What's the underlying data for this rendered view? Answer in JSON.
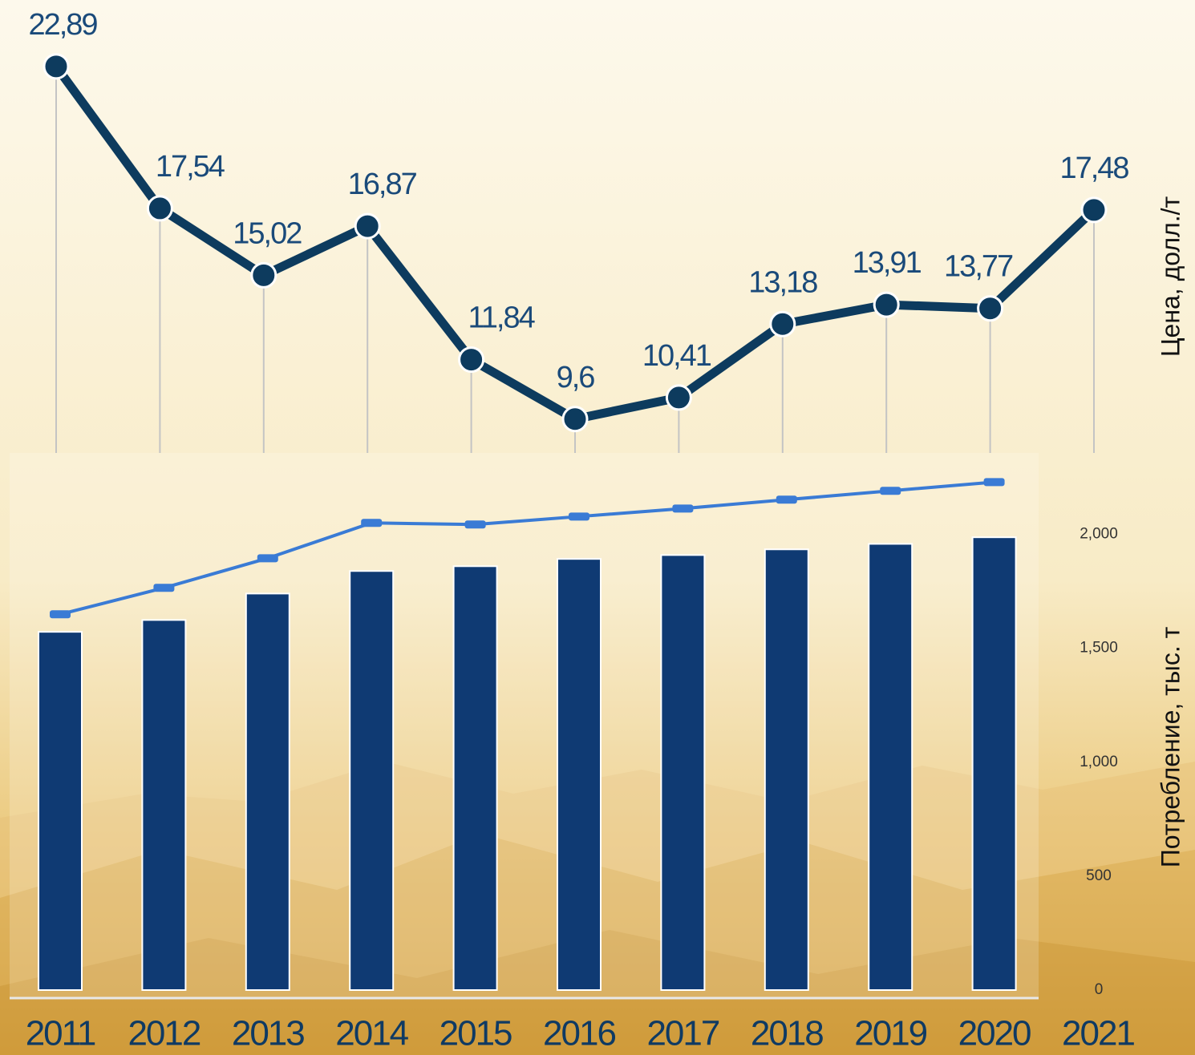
{
  "chart_data": [
    {
      "type": "line",
      "color": "#0d3b5e",
      "values": [
        22.89,
        17.54,
        15.02,
        16.87,
        11.84,
        9.6,
        10.41,
        13.18,
        13.91,
        13.77,
        17.48
      ],
      "value_labels": [
        "22,89",
        "17,54",
        "15,02",
        "16,87",
        "11,84",
        "9,6",
        "10,41",
        "13,18",
        "13,91",
        "13,77",
        "17,48"
      ],
      "ylim": [
        5,
        25
      ],
      "y_label": "Цена, долл./т"
    },
    {
      "type": "bar",
      "categories": [
        "2011",
        "2012",
        "2013",
        "2014",
        "2015",
        "2016",
        "2017",
        "2018",
        "2019",
        "2020",
        "2021"
      ],
      "series": [
        {
          "type": "bar",
          "color": "#0f3a73",
          "values": [
            1572,
            1624,
            1740,
            1839,
            1860,
            1892,
            1909,
            1934,
            1958,
            1987,
            null
          ]
        },
        {
          "type": "line",
          "color": "#3a7bd5",
          "values": [
            1649,
            1765,
            1895,
            2050,
            2043,
            2078,
            2113,
            2152,
            2191,
            2229,
            null
          ]
        }
      ],
      "ylim": [
        0,
        2350
      ],
      "yticks": [
        0,
        500,
        {
          "value": 1000,
          "label": "1,000"
        },
        {
          "value": 1500,
          "label": "1,500"
        },
        {
          "value": 2000,
          "label": "2,000"
        }
      ],
      "y_label": "Потребление, тыс. т"
    }
  ]
}
